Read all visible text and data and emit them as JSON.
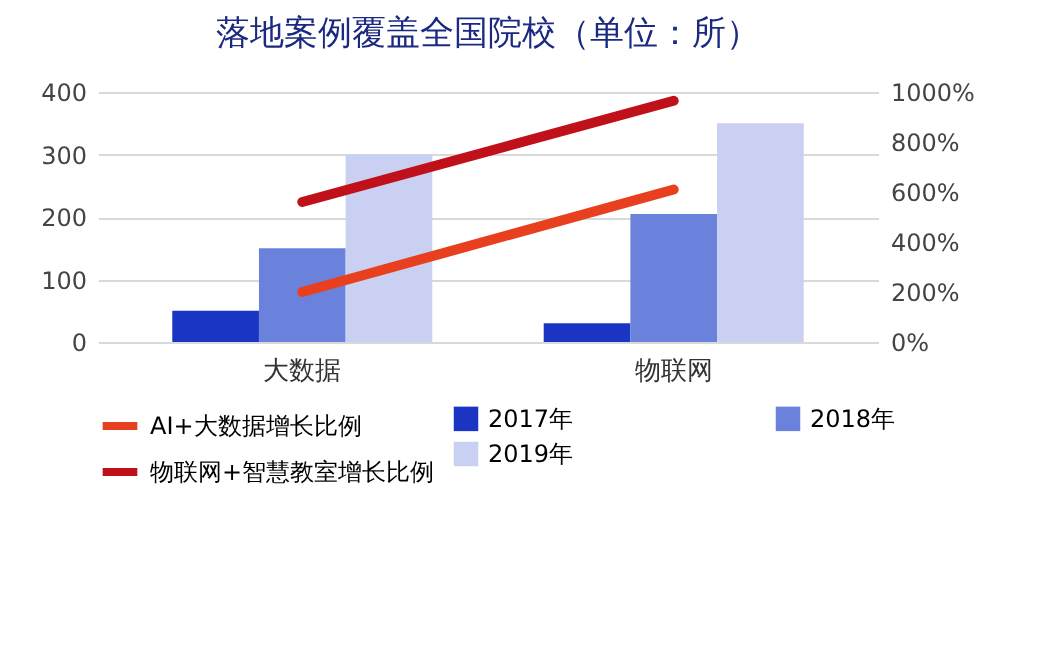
{
  "chart_data": {
    "type": "bar",
    "title": "落地案例覆盖全国院校（单位：所）",
    "categories": [
      "大数据",
      "物联网"
    ],
    "series": [
      {
        "name": "2017年",
        "color": "#1a35c4",
        "values": [
          50,
          30
        ]
      },
      {
        "name": "2018年",
        "color": "#6b82dc",
        "values": [
          150,
          205
        ]
      },
      {
        "name": "2019年",
        "color": "#c9d0f2",
        "values": [
          300,
          350
        ]
      },
      {
        "name": "AI+大数据增长比例",
        "type": "line",
        "axis": "y2",
        "color": "#e8401f",
        "values": [
          200,
          610
        ]
      },
      {
        "name": "物联网+智慧教室增长比例",
        "type": "line",
        "axis": "y2",
        "color": "#c0101a",
        "values": [
          560,
          965
        ]
      }
    ],
    "ylim": [
      0,
      400
    ],
    "yticks": [
      0,
      100,
      200,
      300,
      400
    ],
    "y2lim": [
      0,
      1000
    ],
    "y2ticks": [
      {
        "value": 0,
        "label": "0%"
      },
      {
        "value": 200,
        "label": "200%"
      },
      {
        "value": 400,
        "label": "400%"
      },
      {
        "value": 600,
        "label": "600%"
      },
      {
        "value": 800,
        "label": "800%"
      },
      {
        "value": 1000,
        "label": "1000%"
      }
    ],
    "grid": "y",
    "legend": "bottom"
  }
}
